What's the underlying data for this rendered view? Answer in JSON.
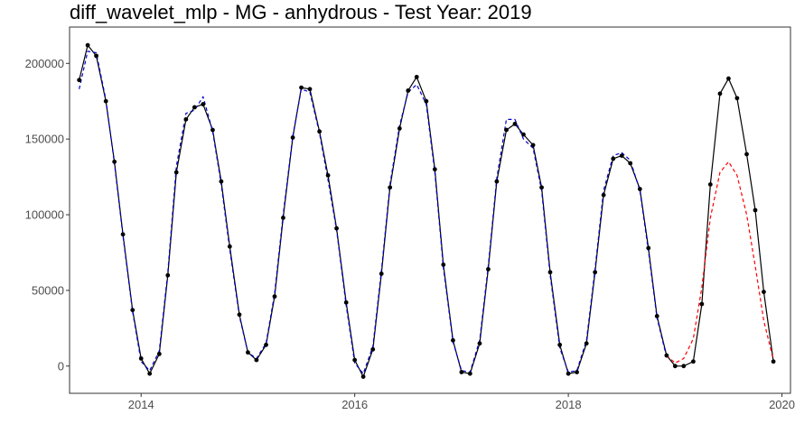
{
  "chart_data": {
    "type": "line",
    "title": "diff_wavelet_mlp - MG - anhydrous - Test Year: 2019",
    "xlabel": "",
    "ylabel": "",
    "xlim": [
      2013.33,
      2020.08
    ],
    "ylim": [
      -18000,
      224000
    ],
    "grid": false,
    "x_ticks": [
      {
        "value": 2014,
        "label": "2014"
      },
      {
        "value": 2016,
        "label": "2016"
      },
      {
        "value": 2018,
        "label": "2018"
      },
      {
        "value": 2020,
        "label": "2020"
      }
    ],
    "y_ticks": [
      {
        "value": 0,
        "label": "0"
      },
      {
        "value": 50000,
        "label": "50000"
      },
      {
        "value": 100000,
        "label": "100000"
      },
      {
        "value": 150000,
        "label": "150000"
      },
      {
        "value": 200000,
        "label": "200000"
      }
    ],
    "series": [
      {
        "style": "solid",
        "color": "#000000",
        "markers": true,
        "x": [
          2013.42,
          2013.5,
          2013.58,
          2013.67,
          2013.75,
          2013.83,
          2013.92,
          2014.0,
          2014.08,
          2014.17,
          2014.25,
          2014.33,
          2014.42,
          2014.5,
          2014.58,
          2014.67,
          2014.75,
          2014.83,
          2014.92,
          2015.0,
          2015.08,
          2015.17,
          2015.25,
          2015.33,
          2015.42,
          2015.5,
          2015.58,
          2015.67,
          2015.75,
          2015.83,
          2015.92,
          2016.0,
          2016.08,
          2016.17,
          2016.25,
          2016.33,
          2016.42,
          2016.5,
          2016.58,
          2016.67,
          2016.75,
          2016.83,
          2016.92,
          2017.0,
          2017.08,
          2017.17,
          2017.25,
          2017.33,
          2017.42,
          2017.5,
          2017.58,
          2017.67,
          2017.75,
          2017.83,
          2017.92,
          2018.0,
          2018.08,
          2018.17,
          2018.25,
          2018.33,
          2018.42,
          2018.5,
          2018.58,
          2018.67,
          2018.75,
          2018.83,
          2018.92,
          2019.0,
          2019.08,
          2019.17,
          2019.25,
          2019.33,
          2019.42,
          2019.5,
          2019.58,
          2019.67,
          2019.75,
          2019.83,
          2019.92
        ],
        "y": [
          189000,
          212000,
          205000,
          175000,
          135000,
          87000,
          37000,
          5000,
          -5000,
          8000,
          60000,
          128000,
          163000,
          171000,
          173000,
          156000,
          122000,
          79000,
          34000,
          9000,
          4000,
          14000,
          46000,
          98000,
          151000,
          184000,
          183000,
          155000,
          126000,
          91000,
          42000,
          4000,
          -7000,
          11000,
          61000,
          118000,
          157000,
          182000,
          191000,
          175000,
          130000,
          67000,
          17000,
          -4000,
          -5000,
          15000,
          64000,
          122000,
          156000,
          160000,
          153000,
          146000,
          118000,
          62000,
          14000,
          -5000,
          -4000,
          15000,
          62000,
          113000,
          137000,
          139000,
          134000,
          117000,
          78000,
          33000,
          7000,
          0,
          0,
          3000,
          41000,
          120000,
          180000,
          190000,
          177000,
          140000,
          103000,
          49000,
          3000
        ]
      },
      {
        "style": "dashed",
        "color": "#0000cc",
        "markers": false,
        "x": [
          2013.42,
          2013.5,
          2013.58,
          2013.67,
          2013.75,
          2013.83,
          2013.92,
          2014.0,
          2014.08,
          2014.17,
          2014.25,
          2014.33,
          2014.42,
          2014.5,
          2014.58,
          2014.67,
          2014.75,
          2014.83,
          2014.92,
          2015.0,
          2015.08,
          2015.17,
          2015.25,
          2015.33,
          2015.42,
          2015.5,
          2015.58,
          2015.67,
          2015.75,
          2015.83,
          2015.92,
          2016.0,
          2016.08,
          2016.17,
          2016.25,
          2016.33,
          2016.42,
          2016.5,
          2016.58,
          2016.67,
          2016.75,
          2016.83,
          2016.92,
          2017.0,
          2017.08,
          2017.17,
          2017.25,
          2017.33,
          2017.42,
          2017.5,
          2017.58,
          2017.67,
          2017.75,
          2017.83,
          2017.92,
          2018.0,
          2018.08,
          2018.17,
          2018.25,
          2018.33,
          2018.42,
          2018.5,
          2018.58,
          2018.67,
          2018.75,
          2018.83,
          2018.92
        ],
        "y": [
          183000,
          208000,
          207000,
          176000,
          134000,
          86000,
          36000,
          3000,
          -3000,
          10000,
          62000,
          132000,
          167000,
          169000,
          178000,
          155000,
          120000,
          77000,
          33000,
          9000,
          5000,
          15000,
          48000,
          100000,
          152000,
          183000,
          181000,
          154000,
          123000,
          90000,
          40000,
          2000,
          -5000,
          13000,
          63000,
          120000,
          159000,
          181000,
          186000,
          173000,
          128000,
          65000,
          16000,
          -3000,
          -4000,
          17000,
          66000,
          124000,
          163000,
          163000,
          150000,
          144000,
          116000,
          60000,
          12000,
          -4000,
          -3000,
          17000,
          64000,
          116000,
          139000,
          141000,
          136000,
          116000,
          76000,
          32000,
          6000
        ]
      },
      {
        "style": "dashed",
        "color": "#ff0000",
        "markers": false,
        "x": [
          2018.92,
          2019.0,
          2019.08,
          2019.17,
          2019.25,
          2019.33,
          2019.42,
          2019.5,
          2019.58,
          2019.67,
          2019.75,
          2019.83,
          2019.92
        ],
        "y": [
          7000,
          2000,
          5000,
          18000,
          52000,
          98000,
          128000,
          135000,
          126000,
          100000,
          66000,
          30000,
          4000
        ]
      }
    ]
  }
}
